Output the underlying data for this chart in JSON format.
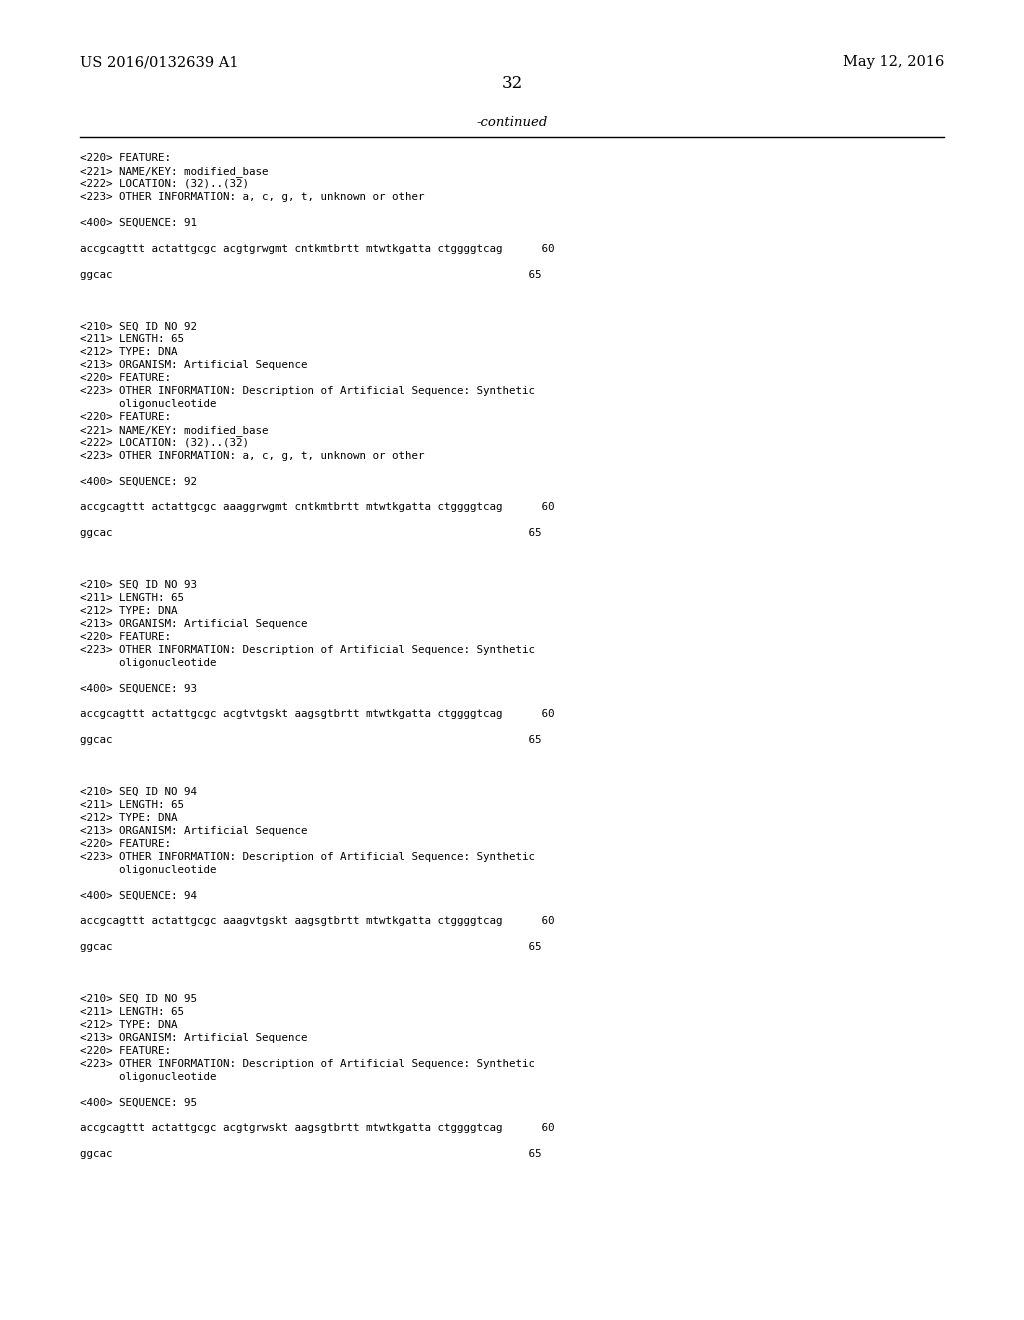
{
  "background_color": "#ffffff",
  "header_left": "US 2016/0132639 A1",
  "header_right": "May 12, 2016",
  "page_number": "32",
  "continued_label": "-continued",
  "font_size_header": 10.5,
  "font_size_body": 7.8,
  "font_size_page": 12,
  "font_size_continued": 9.5,
  "content_lines": [
    "<220> FEATURE:",
    "<221> NAME/KEY: modified_base",
    "<222> LOCATION: (32)..(32)",
    "<223> OTHER INFORMATION: a, c, g, t, unknown or other",
    "",
    "<400> SEQUENCE: 91",
    "",
    "accgcagttt actattgcgc acgtgrwgmt cntkmtbrtt mtwtkgatta ctggggtcag      60",
    "",
    "ggcac                                                                65",
    "",
    "",
    "",
    "<210> SEQ ID NO 92",
    "<211> LENGTH: 65",
    "<212> TYPE: DNA",
    "<213> ORGANISM: Artificial Sequence",
    "<220> FEATURE:",
    "<223> OTHER INFORMATION: Description of Artificial Sequence: Synthetic",
    "      oligonucleotide",
    "<220> FEATURE:",
    "<221> NAME/KEY: modified_base",
    "<222> LOCATION: (32)..(32)",
    "<223> OTHER INFORMATION: a, c, g, t, unknown or other",
    "",
    "<400> SEQUENCE: 92",
    "",
    "accgcagttt actattgcgc aaaggrwgmt cntkmtbrtt mtwtkgatta ctggggtcag      60",
    "",
    "ggcac                                                                65",
    "",
    "",
    "",
    "<210> SEQ ID NO 93",
    "<211> LENGTH: 65",
    "<212> TYPE: DNA",
    "<213> ORGANISM: Artificial Sequence",
    "<220> FEATURE:",
    "<223> OTHER INFORMATION: Description of Artificial Sequence: Synthetic",
    "      oligonucleotide",
    "",
    "<400> SEQUENCE: 93",
    "",
    "accgcagttt actattgcgc acgtvtgskt aagsgtbrtt mtwtkgatta ctggggtcag      60",
    "",
    "ggcac                                                                65",
    "",
    "",
    "",
    "<210> SEQ ID NO 94",
    "<211> LENGTH: 65",
    "<212> TYPE: DNA",
    "<213> ORGANISM: Artificial Sequence",
    "<220> FEATURE:",
    "<223> OTHER INFORMATION: Description of Artificial Sequence: Synthetic",
    "      oligonucleotide",
    "",
    "<400> SEQUENCE: 94",
    "",
    "accgcagttt actattgcgc aaagvtgskt aagsgtbrtt mtwtkgatta ctggggtcag      60",
    "",
    "ggcac                                                                65",
    "",
    "",
    "",
    "<210> SEQ ID NO 95",
    "<211> LENGTH: 65",
    "<212> TYPE: DNA",
    "<213> ORGANISM: Artificial Sequence",
    "<220> FEATURE:",
    "<223> OTHER INFORMATION: Description of Artificial Sequence: Synthetic",
    "      oligonucleotide",
    "",
    "<400> SEQUENCE: 95",
    "",
    "accgcagttt actattgcgc acgtgrwskt aagsgtbrtt mtwtkgatta ctggggtcag      60",
    "",
    "ggcac                                                                65"
  ]
}
